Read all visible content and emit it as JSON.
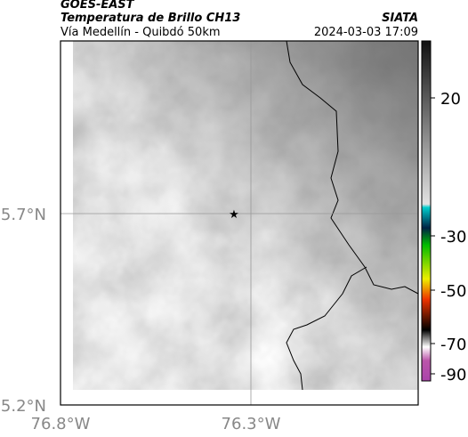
{
  "header": {
    "title": "GOES-EAST",
    "subtitle": "Temperatura de Brillo CH13",
    "source": "SIATA",
    "route": "Vía Medellín - Quibdó 50km",
    "timestamp": "2024-03-03 17:09"
  },
  "map": {
    "xticks": [
      "76.8°W",
      "76.3°W"
    ],
    "yticks": [
      "5.7°N",
      "5.2°N"
    ]
  },
  "colorbar": {
    "ticks": [
      20,
      -30,
      -50,
      -70,
      -90
    ]
  }
}
